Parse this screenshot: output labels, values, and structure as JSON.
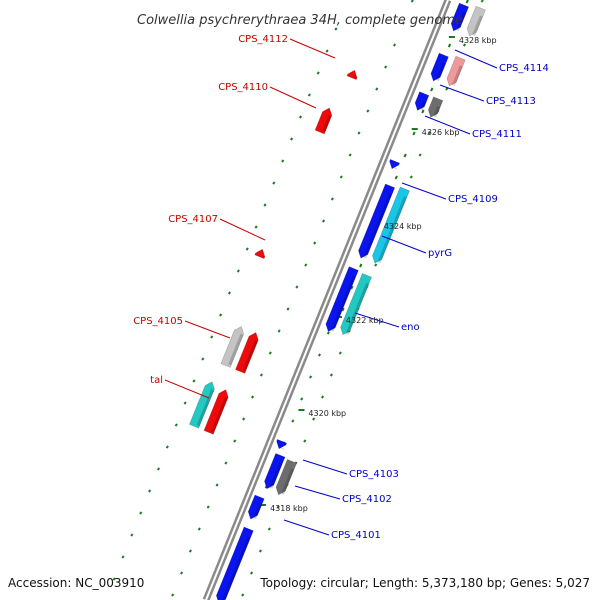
{
  "title": "Colwellia psychrerythraea 34H, complete genome",
  "footer": {
    "accession": "Accession: NC_003910",
    "summary": "Topology: circular; Length: 5,373,180 bp; Genes: 5,027"
  },
  "colors": {
    "backbone": "#8a8a8a",
    "tick": "#1a7a1a",
    "label_red": "#cc0000",
    "label_blue": "#0000cc",
    "cds_blue": "#0a14ee",
    "cds_cyan": "#19c6e6",
    "cds_teal": "#22c9c2",
    "cds_red": "#ee0a0a",
    "cds_pink": "#ef9a9a",
    "cds_lightgray": "#c4c4c4",
    "cds_darkgray": "#6d6d6d"
  },
  "kbp_marks": [
    "4328 kbp",
    "4326 kbp",
    "4324 kbp",
    "4322 kbp",
    "4320 kbp",
    "4318 kbp"
  ],
  "genes_reverse": [
    "CPS_4112",
    "CPS_4110",
    "CPS_4107",
    "CPS_4105",
    "tal"
  ],
  "genes_forward": [
    "CPS_4114",
    "CPS_4113",
    "CPS_4111",
    "CPS_4109",
    "pyrG",
    "eno",
    "CPS_4103",
    "CPS_4102",
    "CPS_4101"
  ]
}
